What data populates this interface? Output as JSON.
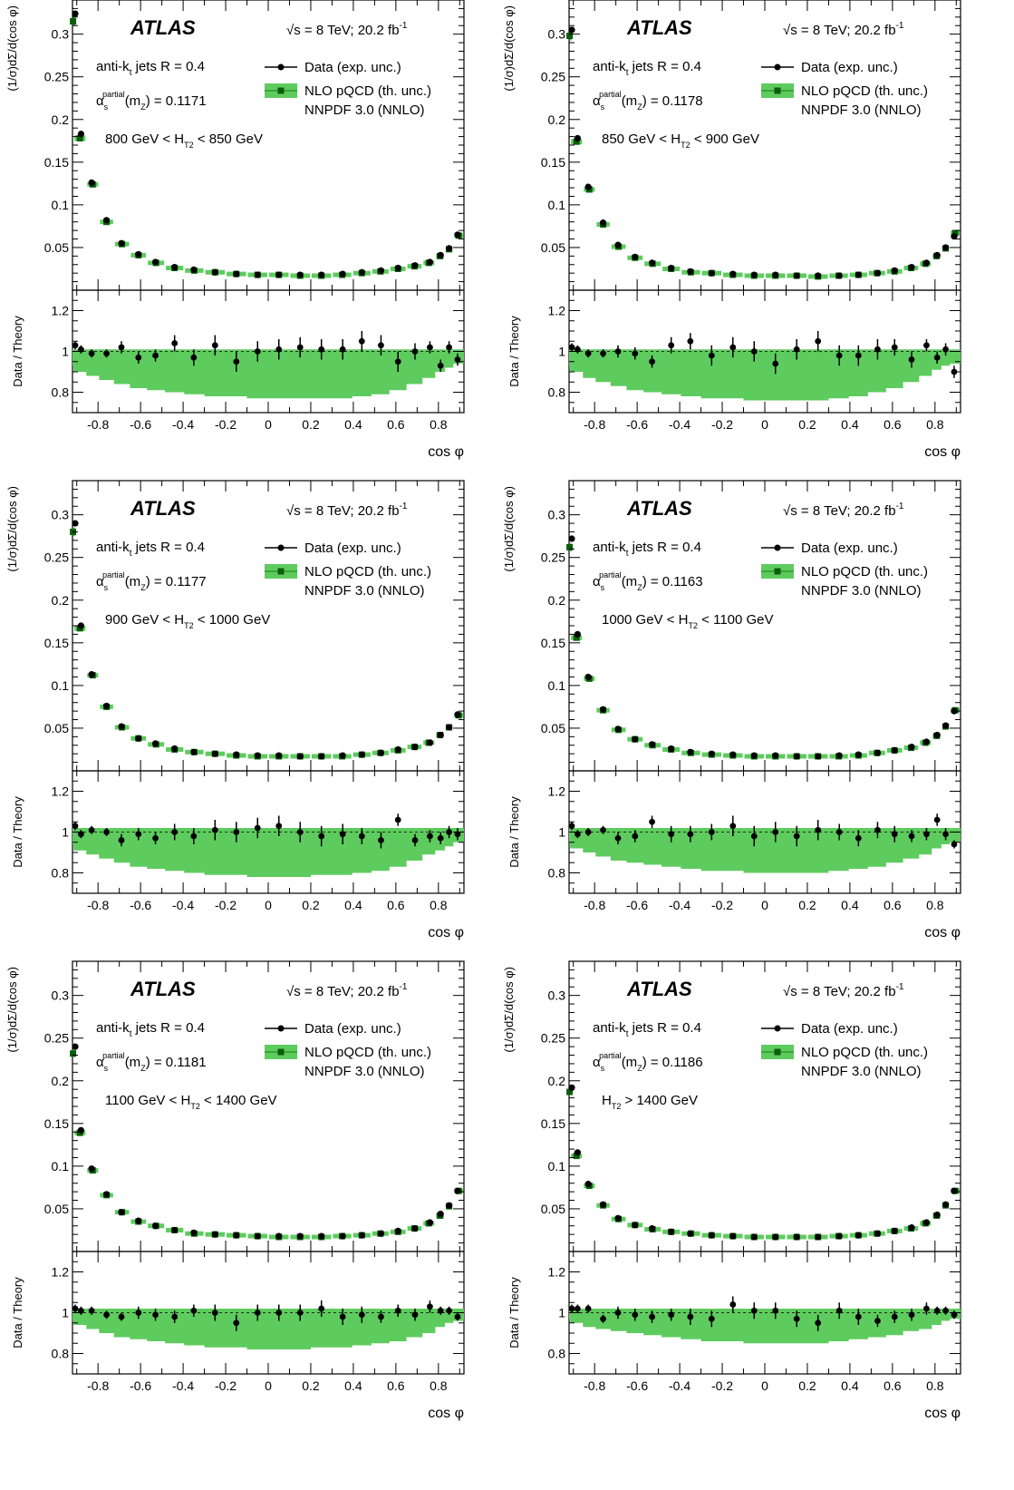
{
  "figure": {
    "atlas_label": "ATLAS",
    "energy_label": "√s = 8 TeV; 20.2 fb",
    "energy_sup": "-1",
    "jets_label_pre": "anti-k",
    "jets_label_sub": "t",
    "jets_label_post": " jets R = 0.4",
    "alpha_symbol": "α",
    "alpha_sub": "s",
    "alpha_sup": "partial",
    "alpha_arg_pre": "(m",
    "alpha_arg_sub": "Z",
    "alpha_arg_post": ") = ",
    "legend_data": "Data (exp. unc.)",
    "legend_theory": "NLO pQCD (th. unc.)",
    "legend_pdf": "NNPDF 3.0 (NNLO)",
    "ylabel_top": "(1/σ)dΣ/d(cos φ)",
    "ylabel_bottom": "Data / Theory",
    "xlabel": "cos φ",
    "colors": {
      "band": "#5ecb5e",
      "band_dark": "#2e9a2e",
      "marker": "#000000",
      "square": "#0b5d0b"
    }
  },
  "chart_data": [
    {
      "type": "line",
      "panel": "800-850",
      "ht_pre": "800 GeV < H",
      "ht_sub": "T2",
      "ht_post": " < 850 GeV",
      "alpha_value": "0.1171",
      "x": [
        -0.95,
        -0.88,
        -0.83,
        -0.76,
        -0.69,
        -0.61,
        -0.53,
        -0.44,
        -0.35,
        -0.25,
        -0.15,
        -0.05,
        0.05,
        0.15,
        0.25,
        0.35,
        0.44,
        0.53,
        0.61,
        0.69,
        0.76,
        0.81,
        0.85,
        0.89
      ],
      "data_y": [
        0.324,
        0.183,
        0.126,
        0.082,
        0.055,
        0.042,
        0.033,
        0.027,
        0.024,
        0.021,
        0.019,
        0.018,
        0.018,
        0.018,
        0.018,
        0.019,
        0.021,
        0.023,
        0.026,
        0.029,
        0.033,
        0.041,
        0.049,
        0.065
      ],
      "theory_y": [
        0.315,
        0.178,
        0.124,
        0.08,
        0.054,
        0.041,
        0.032,
        0.026,
        0.023,
        0.021,
        0.019,
        0.018,
        0.018,
        0.017,
        0.017,
        0.018,
        0.02,
        0.022,
        0.025,
        0.028,
        0.032,
        0.04,
        0.048,
        0.064
      ],
      "ratio": [
        1.03,
        1.01,
        0.99,
        0.99,
        1.02,
        0.97,
        0.98,
        1.04,
        0.97,
        1.03,
        0.95,
        1.0,
        1.01,
        1.02,
        1.01,
        1.01,
        1.05,
        1.03,
        0.95,
        1.0,
        1.02,
        0.93,
        1.02,
        0.96
      ],
      "ratio_err": [
        0.02,
        0.02,
        0.02,
        0.02,
        0.03,
        0.03,
        0.03,
        0.04,
        0.04,
        0.05,
        0.05,
        0.05,
        0.05,
        0.05,
        0.05,
        0.05,
        0.05,
        0.05,
        0.05,
        0.04,
        0.03,
        0.03,
        0.03,
        0.03
      ],
      "band_low": [
        0.93,
        0.9,
        0.88,
        0.86,
        0.84,
        0.82,
        0.81,
        0.8,
        0.79,
        0.78,
        0.78,
        0.77,
        0.77,
        0.77,
        0.77,
        0.77,
        0.78,
        0.79,
        0.81,
        0.84,
        0.87,
        0.9,
        0.92,
        0.94
      ],
      "band_high": [
        1.01,
        1.01,
        1.01,
        1.01,
        1.01,
        1.01,
        1.01,
        1.01,
        1.01,
        1.01,
        1.01,
        1.01,
        1.01,
        1.01,
        1.01,
        1.01,
        1.01,
        1.01,
        1.01,
        1.01,
        1.01,
        1.01,
        1.01,
        1.01
      ],
      "ylim_top": [
        0,
        0.34
      ],
      "ylim_ratio": [
        0.7,
        1.3
      ],
      "xlim": [
        -0.92,
        0.92
      ]
    },
    {
      "type": "line",
      "panel": "850-900",
      "ht_pre": "850 GeV < H",
      "ht_sub": "T2",
      "ht_post": " < 900 GeV",
      "alpha_value": "0.1178",
      "x": [
        -0.95,
        -0.88,
        -0.83,
        -0.76,
        -0.69,
        -0.61,
        -0.53,
        -0.44,
        -0.35,
        -0.25,
        -0.15,
        -0.05,
        0.05,
        0.15,
        0.25,
        0.35,
        0.44,
        0.53,
        0.61,
        0.69,
        0.76,
        0.81,
        0.85,
        0.89
      ],
      "data_y": [
        0.305,
        0.178,
        0.121,
        0.079,
        0.053,
        0.039,
        0.032,
        0.026,
        0.022,
        0.02,
        0.019,
        0.018,
        0.018,
        0.017,
        0.017,
        0.017,
        0.018,
        0.02,
        0.023,
        0.027,
        0.032,
        0.041,
        0.05,
        0.063
      ],
      "theory_y": [
        0.298,
        0.174,
        0.118,
        0.077,
        0.051,
        0.038,
        0.031,
        0.025,
        0.021,
        0.02,
        0.018,
        0.017,
        0.017,
        0.017,
        0.016,
        0.017,
        0.018,
        0.02,
        0.022,
        0.026,
        0.031,
        0.04,
        0.049,
        0.067
      ],
      "ratio": [
        1.02,
        1.01,
        0.99,
        0.99,
        1.0,
        0.99,
        0.95,
        1.03,
        1.05,
        0.98,
        1.02,
        1.0,
        0.94,
        1.01,
        1.05,
        0.98,
        0.98,
        1.01,
        1.02,
        0.96,
        1.03,
        0.97,
        1.01,
        0.9
      ],
      "ratio_err": [
        0.02,
        0.02,
        0.02,
        0.02,
        0.03,
        0.03,
        0.03,
        0.04,
        0.04,
        0.05,
        0.05,
        0.05,
        0.05,
        0.05,
        0.05,
        0.05,
        0.05,
        0.05,
        0.04,
        0.04,
        0.03,
        0.03,
        0.03,
        0.03
      ],
      "band_low": [
        0.93,
        0.9,
        0.87,
        0.85,
        0.83,
        0.81,
        0.8,
        0.79,
        0.78,
        0.77,
        0.77,
        0.76,
        0.76,
        0.76,
        0.76,
        0.77,
        0.78,
        0.8,
        0.82,
        0.85,
        0.88,
        0.91,
        0.93,
        0.94
      ],
      "band_high": [
        1.01,
        1.01,
        1.01,
        1.01,
        1.01,
        1.01,
        1.01,
        1.01,
        1.01,
        1.01,
        1.01,
        1.01,
        1.01,
        1.01,
        1.01,
        1.01,
        1.01,
        1.01,
        1.01,
        1.01,
        1.01,
        1.01,
        1.01,
        1.01
      ],
      "ylim_top": [
        0,
        0.34
      ],
      "ylim_ratio": [
        0.7,
        1.3
      ],
      "xlim": [
        -0.92,
        0.92
      ]
    },
    {
      "type": "line",
      "panel": "900-1000",
      "ht_pre": "900 GeV < H",
      "ht_sub": "T2",
      "ht_post": " < 1000 GeV",
      "alpha_value": "0.1177",
      "x": [
        -0.95,
        -0.88,
        -0.83,
        -0.76,
        -0.69,
        -0.61,
        -0.53,
        -0.44,
        -0.35,
        -0.25,
        -0.15,
        -0.05,
        0.05,
        0.15,
        0.25,
        0.35,
        0.44,
        0.53,
        0.61,
        0.69,
        0.76,
        0.81,
        0.85,
        0.89
      ],
      "data_y": [
        0.29,
        0.17,
        0.113,
        0.076,
        0.052,
        0.038,
        0.032,
        0.026,
        0.022,
        0.02,
        0.019,
        0.018,
        0.018,
        0.017,
        0.017,
        0.018,
        0.019,
        0.021,
        0.025,
        0.028,
        0.033,
        0.042,
        0.051,
        0.066
      ],
      "theory_y": [
        0.28,
        0.167,
        0.112,
        0.075,
        0.051,
        0.038,
        0.031,
        0.025,
        0.022,
        0.02,
        0.018,
        0.017,
        0.017,
        0.017,
        0.017,
        0.017,
        0.019,
        0.021,
        0.024,
        0.028,
        0.033,
        0.042,
        0.051,
        0.065
      ],
      "ratio": [
        1.03,
        0.99,
        1.01,
        1.0,
        0.96,
        0.99,
        0.97,
        1.0,
        0.98,
        1.01,
        1.0,
        1.02,
        1.03,
        1.0,
        0.98,
        0.99,
        0.98,
        0.96,
        1.06,
        0.96,
        0.98,
        0.97,
        1.0,
        0.99
      ],
      "ratio_err": [
        0.02,
        0.02,
        0.02,
        0.02,
        0.03,
        0.03,
        0.03,
        0.04,
        0.04,
        0.05,
        0.05,
        0.05,
        0.05,
        0.05,
        0.05,
        0.05,
        0.04,
        0.04,
        0.03,
        0.03,
        0.03,
        0.03,
        0.03,
        0.03
      ],
      "band_low": [
        0.94,
        0.91,
        0.89,
        0.87,
        0.85,
        0.83,
        0.82,
        0.81,
        0.8,
        0.79,
        0.79,
        0.78,
        0.78,
        0.78,
        0.79,
        0.79,
        0.8,
        0.81,
        0.83,
        0.86,
        0.89,
        0.91,
        0.93,
        0.95
      ],
      "band_high": [
        1.02,
        1.02,
        1.02,
        1.02,
        1.02,
        1.02,
        1.02,
        1.02,
        1.02,
        1.02,
        1.02,
        1.02,
        1.02,
        1.02,
        1.02,
        1.02,
        1.02,
        1.02,
        1.02,
        1.02,
        1.02,
        1.02,
        1.02,
        1.02
      ],
      "ylim_top": [
        0,
        0.34
      ],
      "ylim_ratio": [
        0.7,
        1.3
      ],
      "xlim": [
        -0.92,
        0.92
      ]
    },
    {
      "type": "line",
      "panel": "1000-1100",
      "ht_pre": "1000 GeV < H",
      "ht_sub": "T2",
      "ht_post": " < 1100 GeV",
      "alpha_value": "0.1163",
      "x": [
        -0.95,
        -0.88,
        -0.83,
        -0.76,
        -0.69,
        -0.61,
        -0.53,
        -0.44,
        -0.35,
        -0.25,
        -0.15,
        -0.05,
        0.05,
        0.15,
        0.25,
        0.35,
        0.44,
        0.53,
        0.61,
        0.69,
        0.76,
        0.81,
        0.85,
        0.89
      ],
      "data_y": [
        0.272,
        0.16,
        0.11,
        0.072,
        0.049,
        0.037,
        0.031,
        0.026,
        0.022,
        0.02,
        0.019,
        0.018,
        0.018,
        0.017,
        0.017,
        0.018,
        0.019,
        0.021,
        0.024,
        0.028,
        0.034,
        0.042,
        0.053,
        0.07
      ],
      "theory_y": [
        0.262,
        0.156,
        0.108,
        0.071,
        0.048,
        0.037,
        0.03,
        0.025,
        0.021,
        0.019,
        0.018,
        0.017,
        0.017,
        0.017,
        0.017,
        0.017,
        0.018,
        0.021,
        0.024,
        0.027,
        0.033,
        0.041,
        0.052,
        0.071
      ],
      "ratio": [
        1.03,
        0.99,
        1.0,
        1.01,
        0.97,
        0.98,
        1.05,
        0.99,
        0.99,
        1.0,
        1.03,
        0.98,
        1.0,
        0.98,
        1.01,
        1.0,
        0.97,
        1.01,
        0.99,
        0.98,
        0.99,
        1.06,
        0.99,
        0.94
      ],
      "ratio_err": [
        0.02,
        0.02,
        0.02,
        0.02,
        0.03,
        0.03,
        0.03,
        0.04,
        0.04,
        0.04,
        0.05,
        0.05,
        0.05,
        0.05,
        0.05,
        0.04,
        0.04,
        0.04,
        0.04,
        0.03,
        0.03,
        0.03,
        0.03,
        0.02
      ],
      "band_low": [
        0.95,
        0.92,
        0.9,
        0.88,
        0.86,
        0.85,
        0.84,
        0.83,
        0.82,
        0.81,
        0.81,
        0.8,
        0.8,
        0.8,
        0.8,
        0.81,
        0.82,
        0.83,
        0.85,
        0.87,
        0.89,
        0.92,
        0.94,
        0.95
      ],
      "band_high": [
        1.02,
        1.02,
        1.02,
        1.02,
        1.02,
        1.02,
        1.02,
        1.02,
        1.02,
        1.02,
        1.02,
        1.02,
        1.02,
        1.02,
        1.02,
        1.02,
        1.02,
        1.02,
        1.02,
        1.02,
        1.02,
        1.02,
        1.02,
        1.02
      ],
      "ylim_top": [
        0,
        0.34
      ],
      "ylim_ratio": [
        0.7,
        1.3
      ],
      "xlim": [
        -0.92,
        0.92
      ]
    },
    {
      "type": "line",
      "panel": "1100-1400",
      "ht_pre": "1100 GeV < H",
      "ht_sub": "T2",
      "ht_post": " < 1400 GeV",
      "alpha_value": "0.1181",
      "x": [
        -0.95,
        -0.88,
        -0.83,
        -0.76,
        -0.69,
        -0.61,
        -0.53,
        -0.44,
        -0.35,
        -0.25,
        -0.15,
        -0.05,
        0.05,
        0.15,
        0.25,
        0.35,
        0.44,
        0.53,
        0.61,
        0.69,
        0.76,
        0.81,
        0.85,
        0.89
      ],
      "data_y": [
        0.24,
        0.142,
        0.097,
        0.067,
        0.046,
        0.036,
        0.03,
        0.025,
        0.022,
        0.02,
        0.019,
        0.018,
        0.018,
        0.018,
        0.018,
        0.018,
        0.019,
        0.021,
        0.024,
        0.027,
        0.034,
        0.044,
        0.054,
        0.071
      ],
      "theory_y": [
        0.232,
        0.139,
        0.095,
        0.066,
        0.046,
        0.035,
        0.03,
        0.025,
        0.021,
        0.02,
        0.019,
        0.018,
        0.017,
        0.017,
        0.017,
        0.018,
        0.019,
        0.021,
        0.023,
        0.027,
        0.033,
        0.042,
        0.053,
        0.071
      ],
      "ratio": [
        1.02,
        1.01,
        1.01,
        0.99,
        0.98,
        1.0,
        0.99,
        0.98,
        1.01,
        1.0,
        0.95,
        1.0,
        1.0,
        1.0,
        1.02,
        0.98,
        0.99,
        0.98,
        1.01,
        0.99,
        1.03,
        1.01,
        1.01,
        0.98
      ],
      "ratio_err": [
        0.02,
        0.02,
        0.02,
        0.02,
        0.02,
        0.03,
        0.03,
        0.03,
        0.03,
        0.04,
        0.04,
        0.04,
        0.04,
        0.04,
        0.04,
        0.04,
        0.04,
        0.03,
        0.03,
        0.03,
        0.03,
        0.02,
        0.02,
        0.02
      ],
      "band_low": [
        0.96,
        0.94,
        0.92,
        0.9,
        0.88,
        0.87,
        0.86,
        0.85,
        0.84,
        0.83,
        0.83,
        0.82,
        0.82,
        0.82,
        0.83,
        0.83,
        0.84,
        0.85,
        0.86,
        0.88,
        0.9,
        0.93,
        0.95,
        0.96
      ],
      "band_high": [
        1.02,
        1.02,
        1.02,
        1.02,
        1.02,
        1.02,
        1.02,
        1.02,
        1.02,
        1.02,
        1.02,
        1.02,
        1.02,
        1.02,
        1.02,
        1.02,
        1.02,
        1.02,
        1.02,
        1.02,
        1.02,
        1.02,
        1.02,
        1.02
      ],
      "ylim_top": [
        0,
        0.34
      ],
      "ylim_ratio": [
        0.7,
        1.3
      ],
      "xlim": [
        -0.92,
        0.92
      ]
    },
    {
      "type": "line",
      "panel": ">1400",
      "ht_pre": "H",
      "ht_sub": "T2",
      "ht_post": " > 1400 GeV",
      "alpha_value": "0.1186",
      "x": [
        -0.95,
        -0.88,
        -0.83,
        -0.76,
        -0.69,
        -0.61,
        -0.53,
        -0.44,
        -0.35,
        -0.25,
        -0.15,
        -0.05,
        0.05,
        0.15,
        0.25,
        0.35,
        0.44,
        0.53,
        0.61,
        0.69,
        0.76,
        0.81,
        0.85,
        0.89
      ],
      "data_y": [
        0.192,
        0.116,
        0.079,
        0.055,
        0.039,
        0.031,
        0.027,
        0.023,
        0.021,
        0.019,
        0.018,
        0.017,
        0.017,
        0.017,
        0.017,
        0.018,
        0.019,
        0.021,
        0.024,
        0.028,
        0.034,
        0.043,
        0.055,
        0.071
      ],
      "theory_y": [
        0.187,
        0.112,
        0.077,
        0.054,
        0.038,
        0.031,
        0.026,
        0.023,
        0.021,
        0.019,
        0.018,
        0.017,
        0.017,
        0.017,
        0.017,
        0.018,
        0.019,
        0.021,
        0.024,
        0.027,
        0.033,
        0.042,
        0.054,
        0.071
      ],
      "ratio": [
        1.02,
        1.02,
        1.02,
        0.97,
        1.0,
        0.99,
        0.98,
        0.99,
        0.98,
        0.97,
        1.04,
        1.01,
        1.01,
        0.97,
        0.95,
        1.01,
        0.98,
        0.96,
        0.98,
        0.99,
        1.02,
        1.01,
        1.01,
        0.99
      ],
      "ratio_err": [
        0.02,
        0.02,
        0.02,
        0.02,
        0.03,
        0.03,
        0.03,
        0.03,
        0.04,
        0.04,
        0.04,
        0.04,
        0.04,
        0.04,
        0.04,
        0.04,
        0.04,
        0.03,
        0.03,
        0.03,
        0.03,
        0.02,
        0.02,
        0.02
      ],
      "band_low": [
        0.97,
        0.95,
        0.93,
        0.92,
        0.91,
        0.9,
        0.89,
        0.88,
        0.87,
        0.86,
        0.86,
        0.85,
        0.85,
        0.85,
        0.85,
        0.86,
        0.87,
        0.88,
        0.89,
        0.91,
        0.92,
        0.94,
        0.96,
        0.97
      ],
      "band_high": [
        1.02,
        1.02,
        1.02,
        1.02,
        1.02,
        1.02,
        1.02,
        1.02,
        1.02,
        1.02,
        1.02,
        1.02,
        1.02,
        1.02,
        1.02,
        1.02,
        1.02,
        1.02,
        1.02,
        1.02,
        1.02,
        1.02,
        1.02,
        1.02
      ],
      "ylim_top": [
        0,
        0.34
      ],
      "ylim_ratio": [
        0.7,
        1.3
      ],
      "xlim": [
        -0.92,
        0.92
      ]
    }
  ],
  "axis": {
    "top_ticks": [
      "0.05",
      "0.1",
      "0.15",
      "0.2",
      "0.25",
      "0.3"
    ],
    "ratio_ticks": [
      "0.8",
      "1",
      "1.2"
    ],
    "x_ticks": [
      "-0.8",
      "-0.6",
      "-0.4",
      "-0.2",
      "0",
      "0.2",
      "0.4",
      "0.6",
      "0.8"
    ]
  }
}
